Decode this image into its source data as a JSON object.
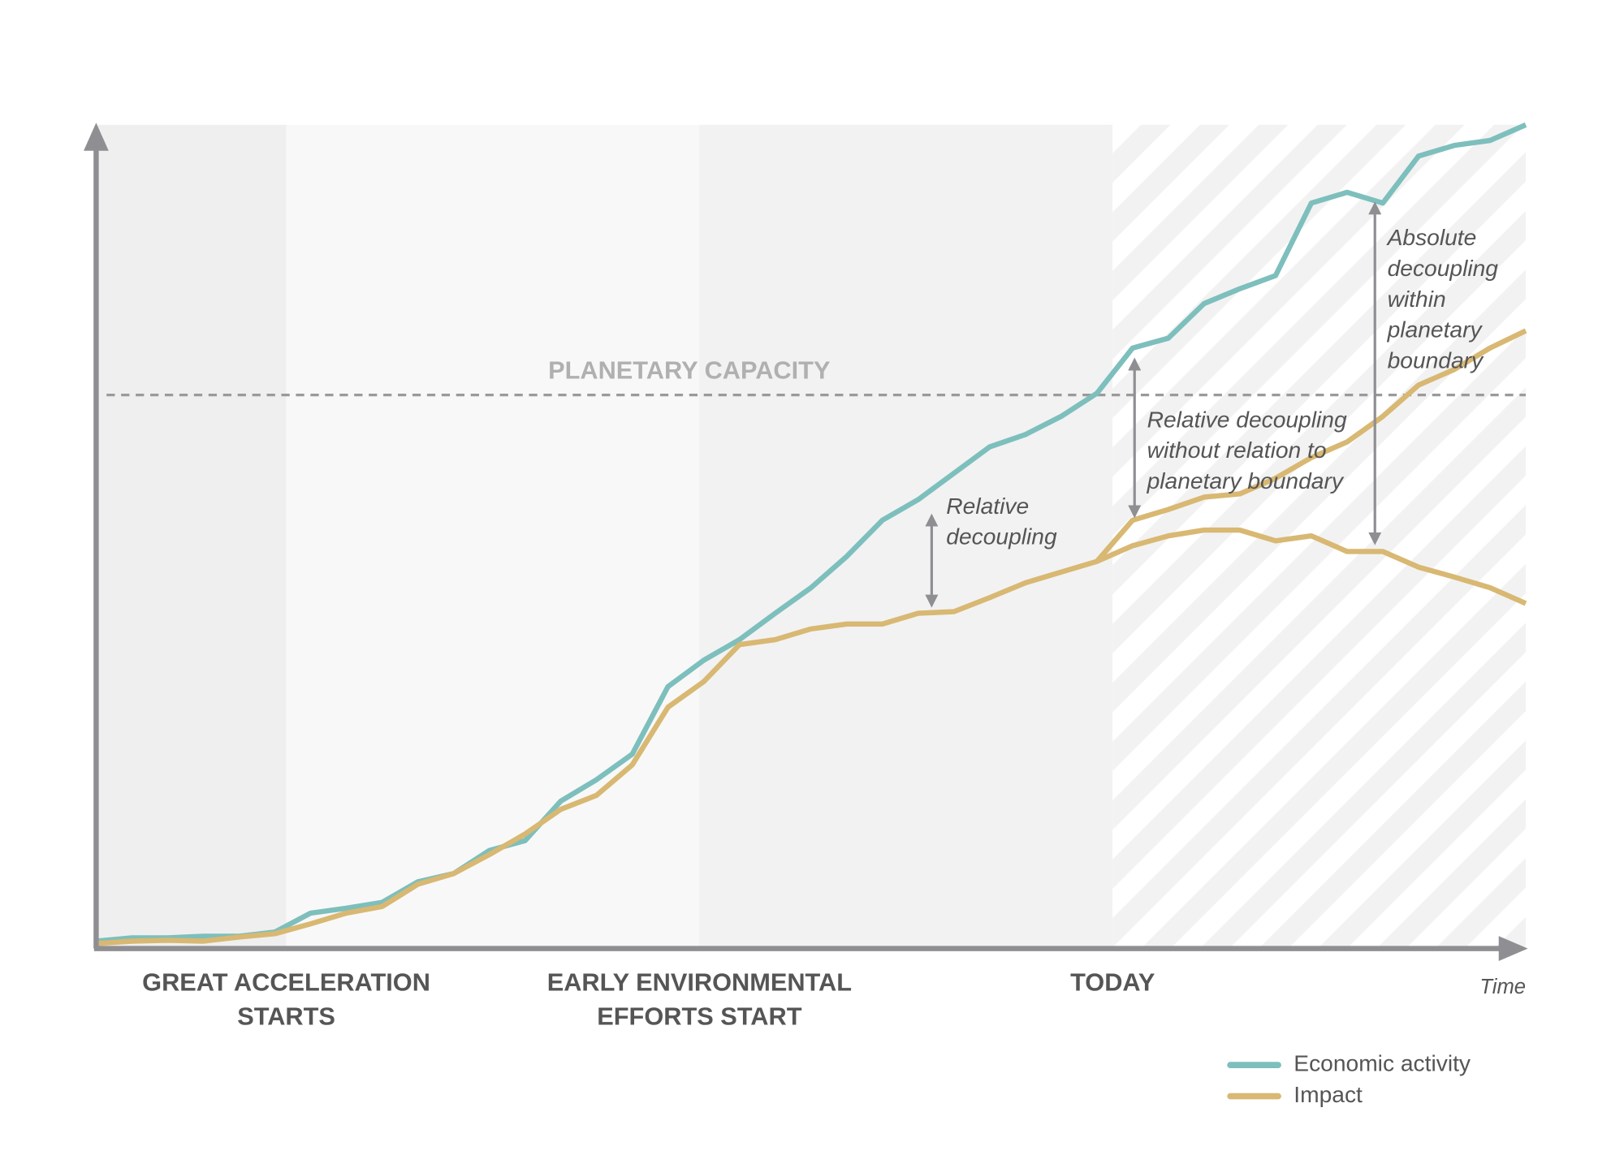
{
  "chart_data": {
    "type": "line",
    "x": [
      0,
      2.5,
      5,
      7.5,
      10,
      12.5,
      15,
      17.5,
      20,
      22.5,
      25,
      27.5,
      30,
      32.5,
      35,
      37.5,
      40,
      42.5,
      45,
      47.5,
      50,
      52.5,
      55,
      57.5,
      60,
      62.5,
      65,
      67.5,
      70,
      72.5,
      75,
      77.5,
      80,
      82.5,
      85,
      87.5,
      90,
      92.5,
      95,
      97.5,
      100
    ],
    "xlim": [
      0,
      100
    ],
    "ylim": [
      0,
      100
    ],
    "xlabel": "Time",
    "series": [
      {
        "name": "Economic activity",
        "color": "#7dbfbc",
        "values": [
          0.9,
          1.3,
          1.3,
          1.5,
          1.5,
          2.0,
          4.3,
          4.9,
          5.6,
          8.1,
          9.1,
          11.9,
          13.1,
          17.9,
          20.5,
          23.6,
          31.8,
          35.0,
          37.5,
          40.7,
          43.8,
          47.6,
          52.0,
          54.5,
          57.7,
          60.9,
          62.4,
          64.6,
          67.4,
          72.9,
          74.1,
          78.3,
          80.1,
          81.7,
          90.5,
          91.8,
          90.5,
          96.2,
          97.5,
          98.1,
          100
        ]
      },
      {
        "name": "Impact",
        "color": "#d8b872",
        "values": [
          0.6,
          0.9,
          1.0,
          0.9,
          1.4,
          1.8,
          3.0,
          4.3,
          5.1,
          7.8,
          9.1,
          11.4,
          13.9,
          16.9,
          18.6,
          22.3,
          29.3,
          32.4,
          36.9,
          37.5,
          38.8,
          39.4,
          39.4,
          40.7,
          40.9,
          42.6,
          44.4,
          45.7,
          47.0,
          48.9,
          50.1,
          50.8,
          50.8,
          49.5,
          50.1,
          48.2,
          48.2,
          46.3,
          45.1,
          43.8,
          41.9
        ]
      },
      {
        "color": "#d8b872",
        "values": [
          null,
          null,
          null,
          null,
          null,
          null,
          null,
          null,
          null,
          null,
          null,
          null,
          null,
          null,
          null,
          null,
          null,
          null,
          null,
          null,
          null,
          null,
          null,
          null,
          null,
          null,
          null,
          null,
          47.0,
          52.0,
          53.3,
          54.8,
          55.2,
          57.1,
          59.6,
          61.5,
          64.6,
          68.4,
          70.3,
          72.9,
          75.0
        ]
      }
    ],
    "capacity": {
      "label": "PLANETARY CAPACITY",
      "value": 67.2
    },
    "events": [
      {
        "x": 13.3,
        "lines": [
          "GREAT ACCELERATION",
          "STARTS"
        ]
      },
      {
        "x": 42.2,
        "lines": [
          "EARLY ENVIRONMENTAL",
          "EFFORTS START"
        ]
      },
      {
        "x": 71.1,
        "lines": [
          "TODAY"
        ]
      }
    ],
    "annotations": [
      {
        "lines": [
          "Relative",
          "decoupling"
        ]
      },
      {
        "lines": [
          "Relative decoupling",
          "without relation to",
          "planetary boundary"
        ]
      },
      {
        "lines": [
          "Absolute",
          "decoupling",
          "within",
          "planetary",
          "boundary"
        ]
      }
    ]
  }
}
